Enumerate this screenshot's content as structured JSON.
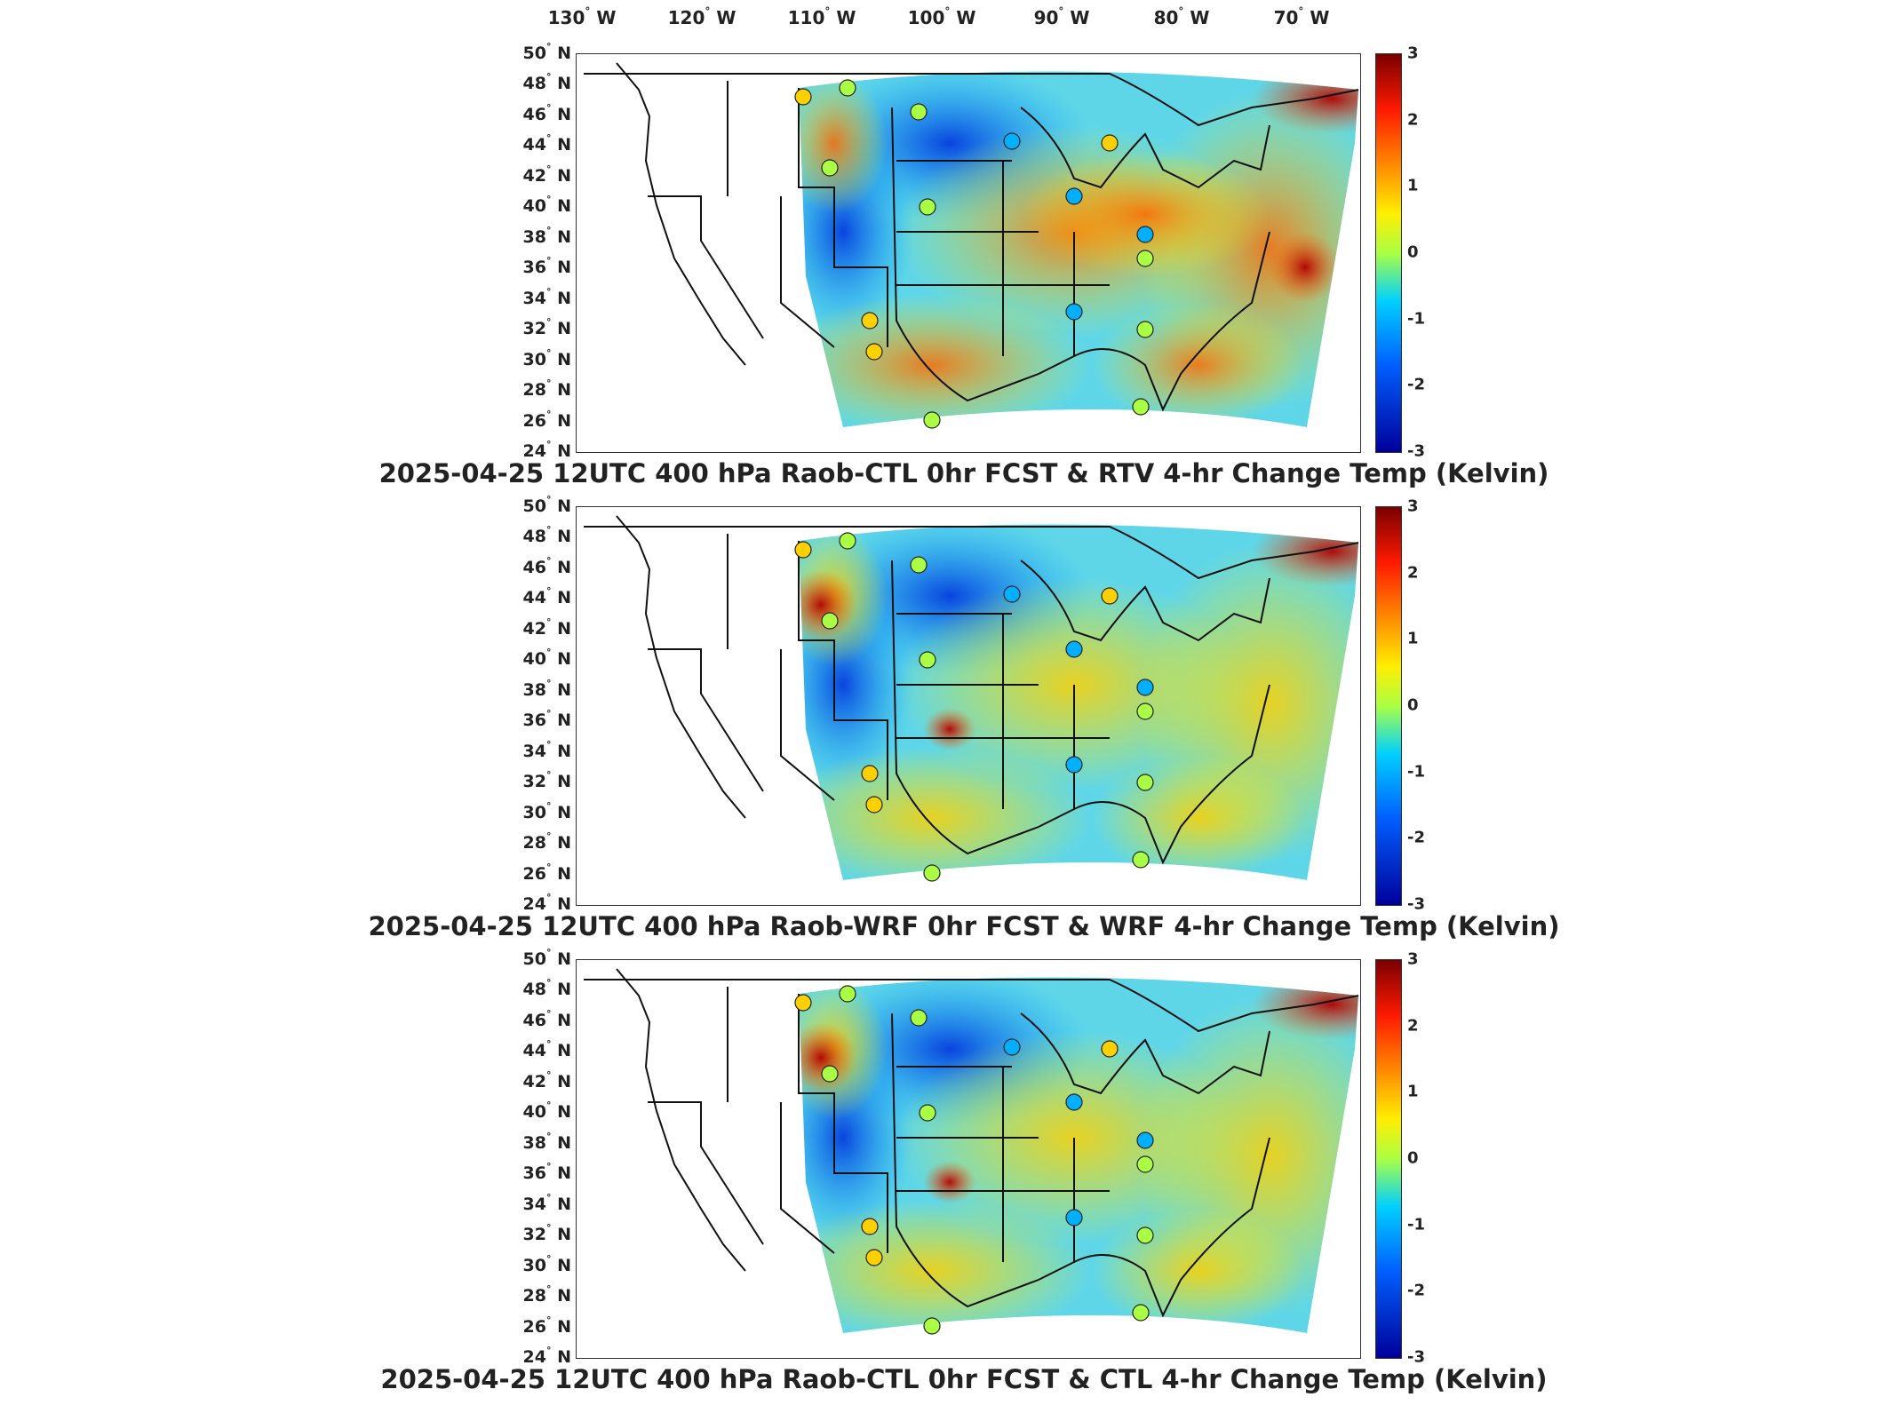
{
  "lon_ticks": [
    "130",
    "120",
    "110",
    "100",
    "90",
    "80",
    "70"
  ],
  "lon_suffix": "W",
  "lat_ticks": [
    "50",
    "48",
    "46",
    "44",
    "42",
    "40",
    "38",
    "36",
    "34",
    "32",
    "30",
    "28",
    "26",
    "24"
  ],
  "lat_suffix": "N",
  "colorbar": {
    "ticks": [
      "3",
      "2",
      "1",
      "0",
      "-1",
      "-2",
      "-3"
    ],
    "min": -3,
    "max": 3,
    "colormap": "jet"
  },
  "panels": [
    {
      "title": "2025-04-25 12UTC 400 hPa Raob-CTL 0hr FCST & RTV 4-hr Change Temp (Kelvin)"
    },
    {
      "title": "2025-04-25 12UTC 400 hPa Raob-WRF 0hr FCST & WRF 4-hr Change Temp (Kelvin)"
    },
    {
      "title": "2025-04-25 12UTC 400 hPa Raob-CTL 0hr FCST & CTL 4-hr Change Temp (Kelvin)"
    }
  ],
  "colors": {
    "warm": "#ff8c00",
    "cool": "#00a0ff",
    "neutral": "#aaff44",
    "hot": "#c00000",
    "cold": "#0000a0"
  }
}
